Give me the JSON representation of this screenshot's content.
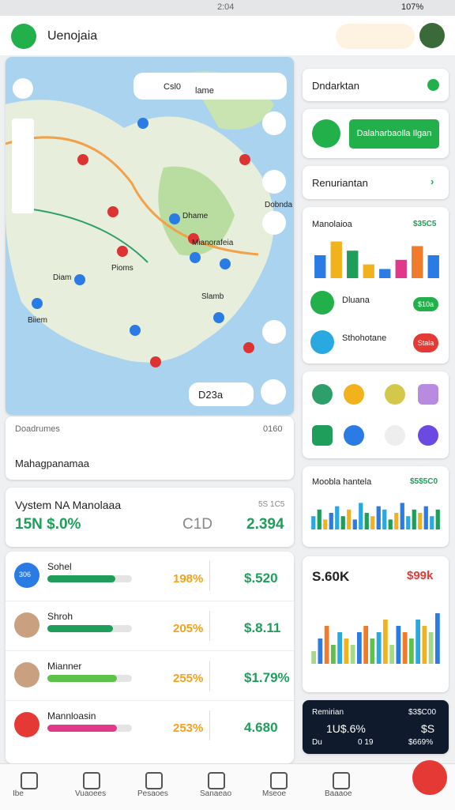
{
  "status": {
    "time": "2:04",
    "battery": "107%"
  },
  "header": {
    "title": "Uenojaia"
  },
  "map": {
    "search": [
      "Csl0",
      "lame"
    ],
    "labels": [
      "Dhame",
      "Mianorafeia",
      "Slamb",
      "Dobnda",
      "Biiem",
      "Pioms",
      "Diam"
    ],
    "pill": "D23a"
  },
  "places": {
    "link": "Doadrumes",
    "count": "0160",
    "title": "Mahagpanamaa"
  },
  "stats": {
    "title": "Vystem NA Manolaaa",
    "sub": "5S 1C5",
    "left": "15N $.0%",
    "mid": "C1D",
    "right": "2.394"
  },
  "list": [
    {
      "name": "Sohel",
      "badge": "306",
      "pct": "198%",
      "value": "$.520",
      "progress": 80,
      "color": "#1e9e5a"
    },
    {
      "name": "Shroh",
      "pct": "205%",
      "value": "$.8.11",
      "progress": 78,
      "color": "#1e9e5a"
    },
    {
      "name": "Mianner",
      "pct": "255%",
      "value": "$1.79%",
      "progress": 82,
      "color": "#5cc24a"
    },
    {
      "name": "Mannloasin",
      "pct": "253%",
      "value": "4.680",
      "progress": 82,
      "color": "#e0388a"
    }
  ],
  "nav": [
    "Ibe",
    "Vuaoees",
    "Pesaoes",
    "Sanaeao",
    "Mseoe",
    "Baaaoe"
  ],
  "side": {
    "card1": "Dndarktan",
    "button": "Dalaharbaolla Ilgan",
    "card3": "Renuriantan",
    "chart_title": "Manolaioa",
    "chart_value": "$35C5",
    "rows": [
      {
        "name": "Dluana",
        "action": "$10a"
      },
      {
        "name": "Sthohotane",
        "action": "Stala"
      }
    ],
    "bars_title": "Moobla hantela",
    "bars_value": "$5$5C0",
    "big_value": "S.60K",
    "big_value2": "$99k",
    "dark": {
      "title": "Remirian",
      "value": "$3$C00",
      "pct": "1U$.6%",
      "right": "$S",
      "a": "Du",
      "b": "0 19",
      "c": "$669%"
    }
  },
  "charts": [
    {
      "ylim": [
        0,
        10
      ],
      "values": [
        5,
        8,
        6,
        3,
        2,
        4,
        7,
        5
      ],
      "colors": [
        "#2a7be4",
        "#f2b21b",
        "#1e9e5a",
        "#f2b21b",
        "#2a7be4",
        "#e0388a",
        "#f07c2b",
        "#2a7be4"
      ]
    },
    {
      "ylim": [
        0,
        10
      ],
      "values": [
        4,
        6,
        3,
        5,
        7,
        4,
        6,
        3,
        8,
        5,
        4,
        7,
        6,
        3,
        5,
        8,
        4,
        6,
        5,
        7,
        4,
        6
      ],
      "colors": [
        "#2aa8e0",
        "#1e9e5a",
        "#f2b21b",
        "#2a7be4"
      ]
    },
    {
      "ylim": [
        0,
        10
      ],
      "values": [
        2,
        4,
        6,
        3,
        5,
        4,
        3,
        5,
        6,
        4,
        5,
        7,
        3,
        6,
        5,
        4,
        7,
        6,
        5,
        8
      ],
      "colors": [
        "#a8d88a",
        "#2a7be4",
        "#f07c2b",
        "#5cc24a",
        "#2aa8e0",
        "#f2b21b"
      ]
    }
  ]
}
